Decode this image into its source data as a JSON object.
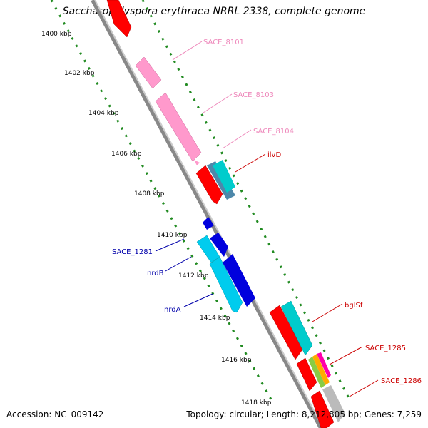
{
  "title": "Saccharopolyspora erythraea NRRL 2338, complete genome",
  "footer": {
    "accession": "Accession: NC_009142",
    "stats": "Topology: circular; Length: 8,212,805 bp; Genes: 7,259"
  },
  "ruler": {
    "ticks": [
      "1400 kbp",
      "1402 kbp",
      "1404 kbp",
      "1406 kbp",
      "1408 kbp",
      "1410 kbp",
      "1412 kbp",
      "1414 kbp",
      "1416 kbp",
      "1418 kbp"
    ]
  },
  "gene_labels": {
    "sace_8101": "SACE_8101",
    "sace_8103": "SACE_8103",
    "sace_8104": "SACE_8104",
    "ilvd": "ilvD",
    "sace_1281": "SACE_1281",
    "nrdb": "nrdB",
    "nrda": "nrdA",
    "bglsf": "bglSf",
    "sace_1285": "SACE_1285",
    "sace_1286": "SACE_1286"
  },
  "colors": {
    "red": "#ff0000",
    "pink": "#ff99cc",
    "teal": "#00cccc",
    "blue": "#0000dd",
    "cyan": "#00ccee",
    "gray": "#bbbbbb",
    "steel": "#4d88aa",
    "ruler_dots": "#228b22",
    "label_pink": "#ee88bb",
    "label_red": "#cc0000",
    "label_blue": "#0000aa"
  }
}
